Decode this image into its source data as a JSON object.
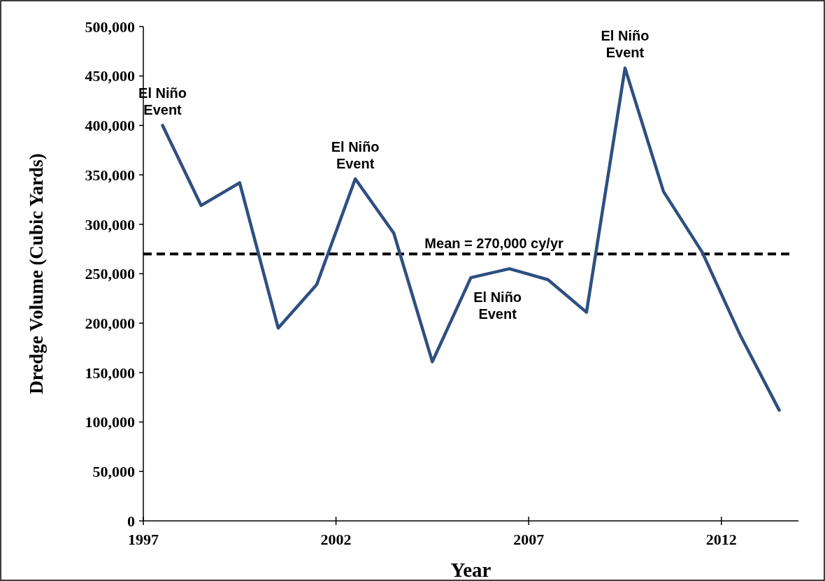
{
  "chart_data": {
    "type": "line",
    "xlabel": "Year",
    "ylabel": "Dredge Volume (Cubic Yards)",
    "x": [
      1997.5,
      1998.5,
      1999.5,
      2000.5,
      2001.5,
      2002.5,
      2003.5,
      2004.5,
      2005.5,
      2006.5,
      2007.5,
      2008.5,
      2009.5,
      2010.5,
      2011.5,
      2012.5,
      2013.5
    ],
    "series": [
      {
        "color": "#2e4f80",
        "values": [
          400000,
          319000,
          342000,
          195000,
          239000,
          346000,
          291000,
          161000,
          246000,
          255000,
          244000,
          211000,
          458000,
          333000,
          272000,
          187000,
          112000
        ]
      }
    ],
    "xlim": [
      1997,
      2014
    ],
    "xticks": [
      1997,
      2002,
      2007,
      2012
    ],
    "ylim": [
      0,
      500000
    ],
    "yticks": [
      {
        "value": 0,
        "label": "0"
      },
      {
        "value": 50000,
        "label": "50,000"
      },
      {
        "value": 100000,
        "label": "100,000"
      },
      {
        "value": 150000,
        "label": "150,000"
      },
      {
        "value": 200000,
        "label": "200,000"
      },
      {
        "value": 250000,
        "label": "250,000"
      },
      {
        "value": 300000,
        "label": "300,000"
      },
      {
        "value": 350000,
        "label": "350,000"
      },
      {
        "value": 400000,
        "label": "400,000"
      },
      {
        "value": 450000,
        "label": "450,000"
      },
      {
        "value": 500000,
        "label": "500,000"
      }
    ],
    "ref_lines": [
      {
        "axis": "y",
        "value": 270000,
        "label": "Mean = 270,000 cy/yr",
        "color": "#000000",
        "line_style": "dashed"
      }
    ],
    "annotations": [
      {
        "text": "El Niño Event",
        "x": 1997.5,
        "y": 400000
      },
      {
        "text": "El Niño Event",
        "x": 2002.5,
        "y": 346000
      },
      {
        "text": "El Niño Event",
        "x": 2006.5,
        "y": 255000
      },
      {
        "text": "El Niño Event",
        "x": 2009.5,
        "y": 458000
      }
    ],
    "grid": false,
    "marker": "none",
    "line_style": "solid"
  }
}
